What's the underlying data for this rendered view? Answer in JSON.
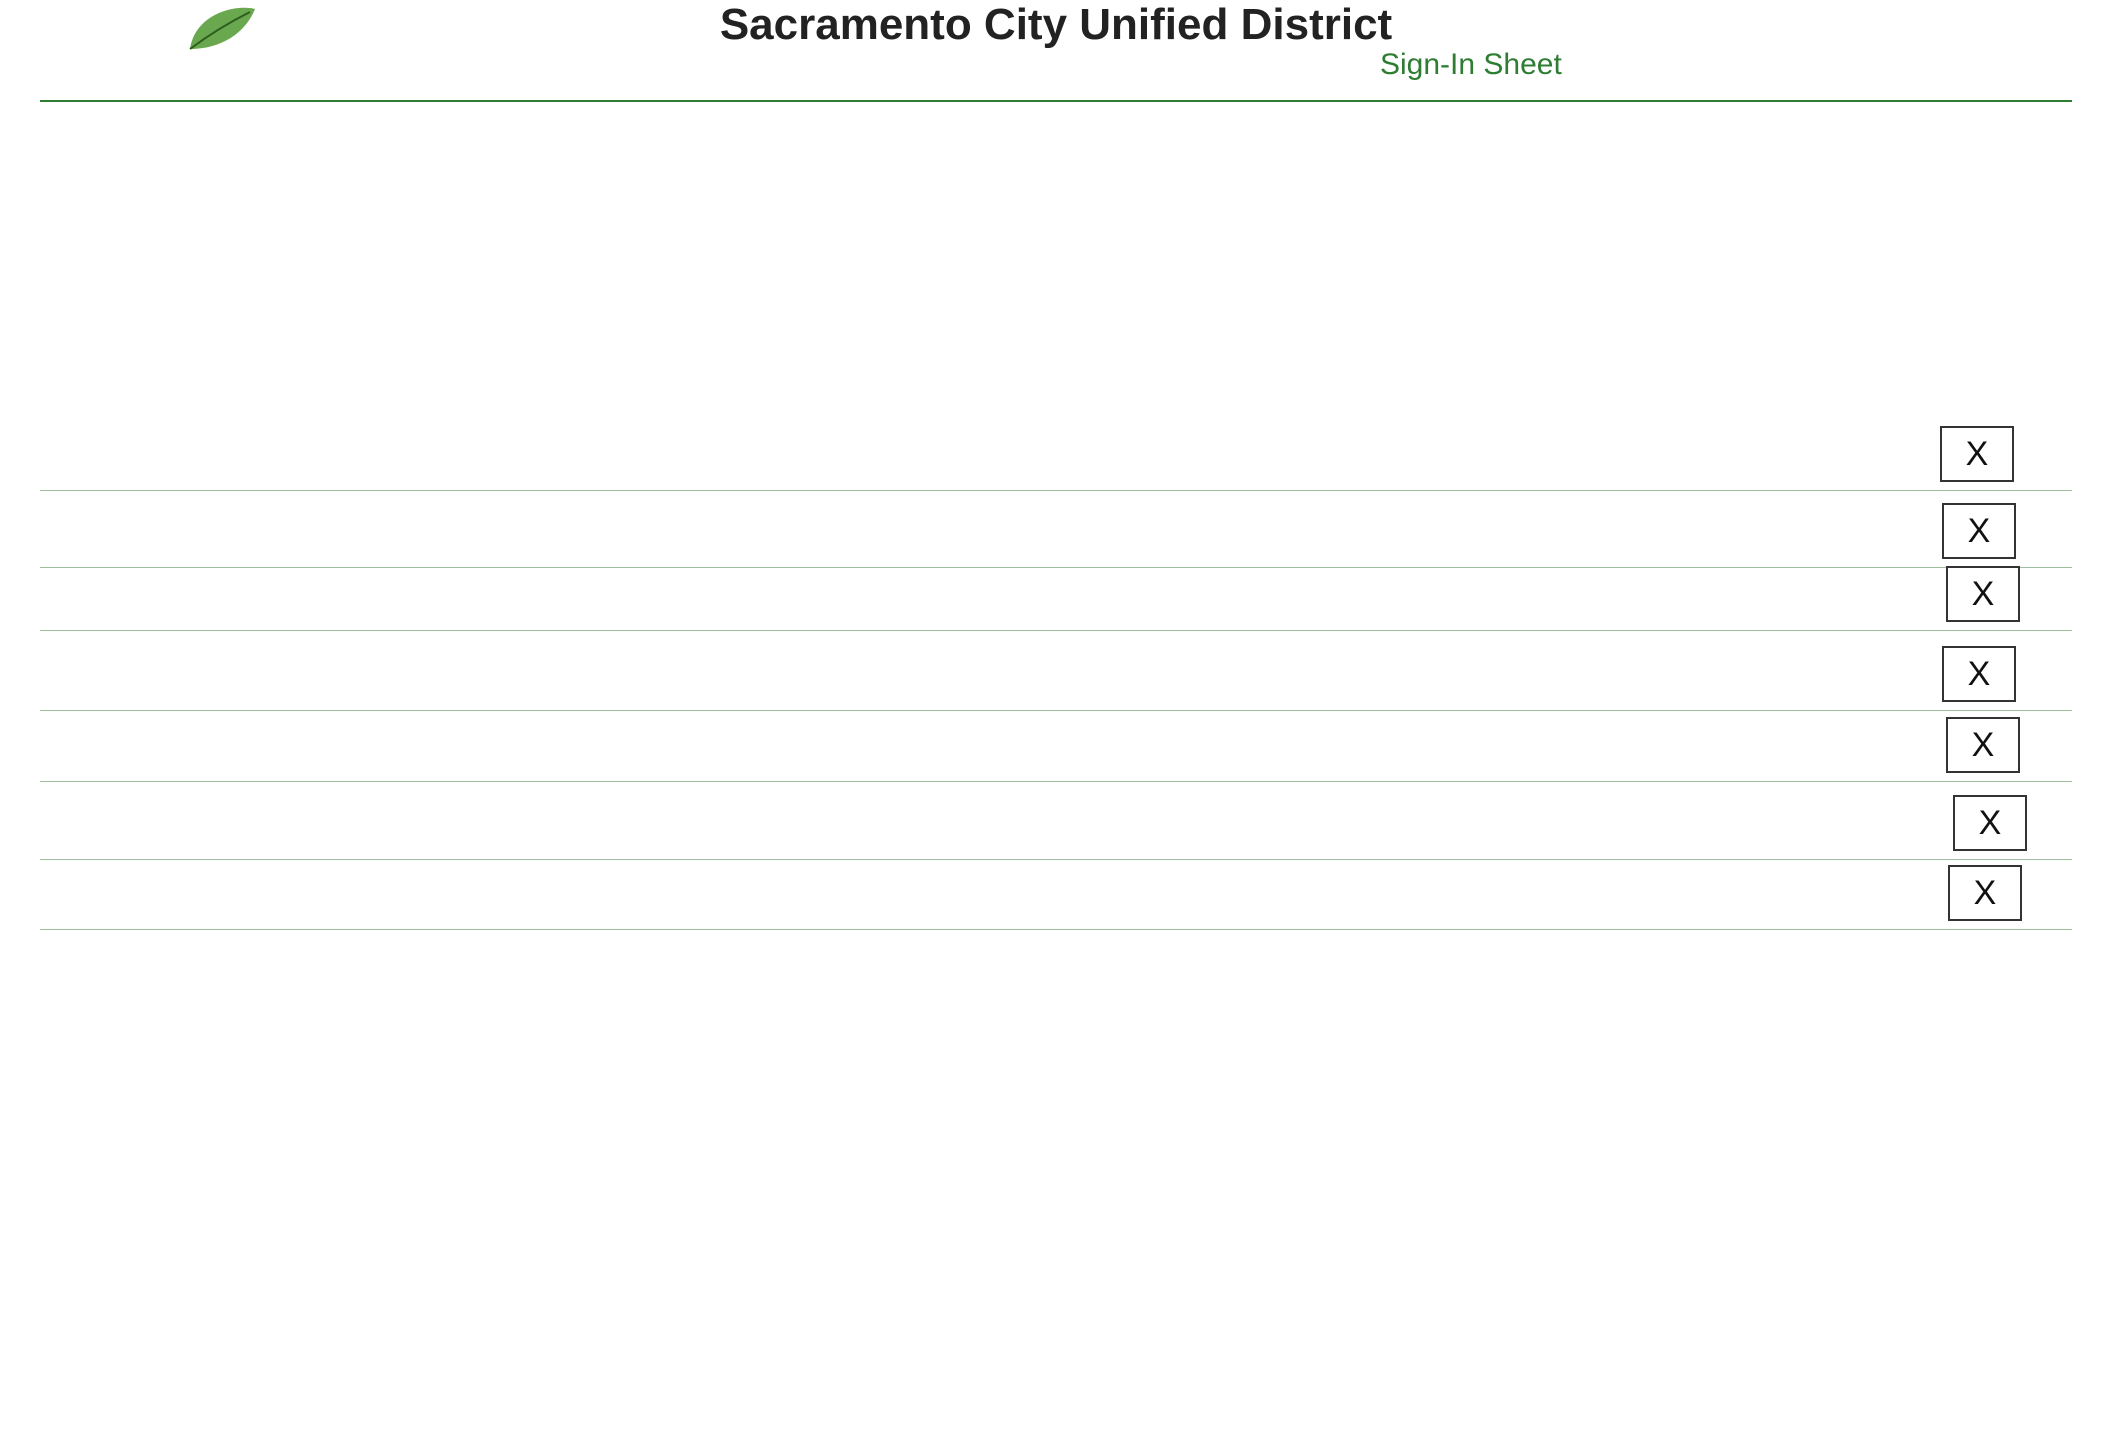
{
  "header": {
    "title": "Sacramento City Unified District",
    "subtitle": "Sign-In Sheet"
  },
  "checkboxes": [
    "X",
    "X",
    "X",
    "X",
    "X",
    "X",
    "X"
  ]
}
